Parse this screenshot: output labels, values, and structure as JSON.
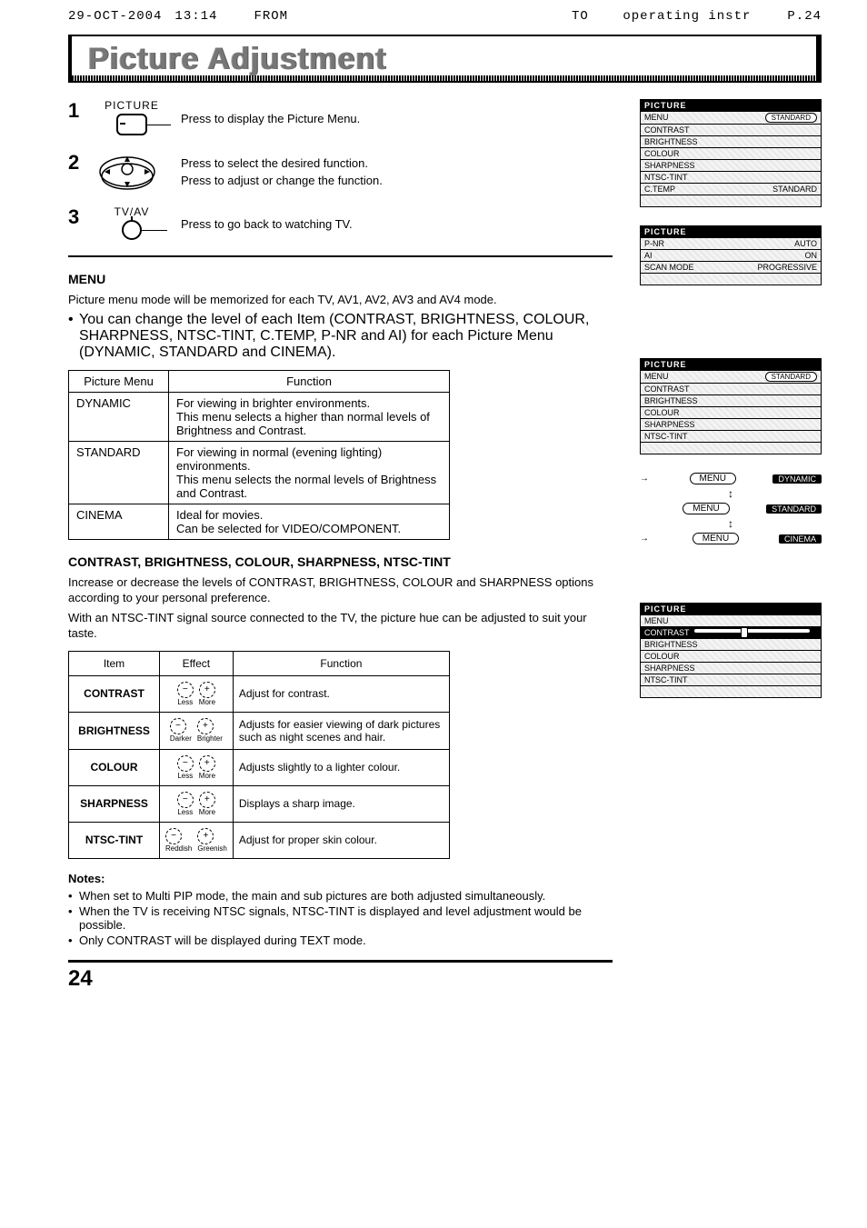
{
  "fax": {
    "date": "29-OCT-2004",
    "time": "13:14",
    "from": "FROM",
    "to_label": "TO",
    "to_value": "operating instr",
    "page": "P.24"
  },
  "title": "Picture Adjustment",
  "steps": [
    {
      "num": "1",
      "icon_label": "PICTURE",
      "lines": [
        "Press to display the Picture Menu."
      ]
    },
    {
      "num": "2",
      "icon_label": "",
      "lines": [
        "Press to select the desired function.",
        "Press to adjust or change the function."
      ]
    },
    {
      "num": "3",
      "icon_label": "TV/AV",
      "lines": [
        "Press to go back to watching TV."
      ]
    }
  ],
  "menu": {
    "heading": "MENU",
    "intro": "Picture menu mode will be memorized for each TV, AV1, AV2, AV3 and AV4 mode.",
    "bullet": "You can change the level of each Item (CONTRAST, BRIGHTNESS, COLOUR, SHARPNESS, NTSC-TINT, C.TEMP, P-NR and AI) for each Picture Menu (DYNAMIC, STANDARD and CINEMA).",
    "table_headers": [
      "Picture Menu",
      "Function"
    ],
    "rows": [
      {
        "name": "DYNAMIC",
        "func": "For viewing in brighter environments.\nThis menu selects a higher than normal levels of Brightness and Contrast."
      },
      {
        "name": "STANDARD",
        "func": "For viewing in normal (evening lighting) environments.\nThis menu selects the normal levels of Brightness and Contrast."
      },
      {
        "name": "CINEMA",
        "func": "Ideal for movies.\nCan be selected for VIDEO/COMPONENT."
      }
    ]
  },
  "adjust": {
    "heading": "CONTRAST, BRIGHTNESS, COLOUR, SHARPNESS, NTSC-TINT",
    "p1": "Increase or decrease the levels of CONTRAST, BRIGHTNESS, COLOUR and SHARPNESS options according to your personal preference.",
    "p2": "With an NTSC-TINT signal source connected to the TV, the picture hue can be adjusted to suit your taste.",
    "headers": [
      "Item",
      "Effect",
      "Function"
    ],
    "rows": [
      {
        "item": "CONTRAST",
        "minus": "Less",
        "plus": "More",
        "func": "Adjust for contrast."
      },
      {
        "item": "BRIGHTNESS",
        "minus": "Darker",
        "plus": "Brighter",
        "func": "Adjusts for easier viewing of dark pictures such as night scenes and hair."
      },
      {
        "item": "COLOUR",
        "minus": "Less",
        "plus": "More",
        "func": "Adjusts slightly to a lighter colour."
      },
      {
        "item": "SHARPNESS",
        "minus": "Less",
        "plus": "More",
        "func": "Displays a sharp image."
      },
      {
        "item": "NTSC-TINT",
        "minus": "Reddish",
        "plus": "Greenish",
        "func": "Adjust for proper skin colour."
      }
    ]
  },
  "notes": {
    "heading": "Notes:",
    "items": [
      "When set to Multi PIP mode, the main and sub pictures are both adjusted simultaneously.",
      "When the TV is receiving NTSC signals, NTSC-TINT is displayed and level adjustment would be possible.",
      "Only CONTRAST will be displayed during TEXT mode."
    ]
  },
  "page_number": "24",
  "osd1": {
    "title": "PICTURE",
    "rows": [
      {
        "k": "MENU",
        "v": "STANDARD",
        "style": "pill"
      },
      {
        "k": "CONTRAST",
        "v": ""
      },
      {
        "k": "BRIGHTNESS",
        "v": ""
      },
      {
        "k": "COLOUR",
        "v": ""
      },
      {
        "k": "SHARPNESS",
        "v": ""
      },
      {
        "k": "NTSC-TINT",
        "v": ""
      },
      {
        "k": "C.TEMP",
        "v": "STANDARD"
      },
      {
        "k": "",
        "v": ""
      }
    ]
  },
  "osd2": {
    "title": "PICTURE",
    "rows": [
      {
        "k": "P-NR",
        "v": "AUTO"
      },
      {
        "k": "AI",
        "v": "ON"
      },
      {
        "k": "SCAN MODE",
        "v": "PROGRESSIVE"
      },
      {
        "k": "",
        "v": ""
      }
    ]
  },
  "osd3": {
    "title": "PICTURE",
    "rows": [
      {
        "k": "MENU",
        "v": "STANDARD",
        "style": "pill"
      },
      {
        "k": "CONTRAST",
        "v": ""
      },
      {
        "k": "BRIGHTNESS",
        "v": ""
      },
      {
        "k": "COLOUR",
        "v": ""
      },
      {
        "k": "SHARPNESS",
        "v": ""
      },
      {
        "k": "NTSC-TINT",
        "v": ""
      },
      {
        "k": "",
        "v": ""
      }
    ]
  },
  "menu_cycle": {
    "btn": "MENU",
    "vals": [
      "DYNAMIC",
      "STANDARD",
      "CINEMA"
    ]
  },
  "osd4": {
    "title": "PICTURE",
    "selected": "CONTRAST",
    "rows": [
      {
        "k": "MENU",
        "v": ""
      },
      {
        "k": "CONTRAST",
        "v": "",
        "slider": true,
        "inv": true
      },
      {
        "k": "BRIGHTNESS",
        "v": ""
      },
      {
        "k": "COLOUR",
        "v": ""
      },
      {
        "k": "SHARPNESS",
        "v": ""
      },
      {
        "k": "NTSC-TINT",
        "v": ""
      },
      {
        "k": "",
        "v": ""
      }
    ]
  },
  "colors": {
    "text": "#000000",
    "title_fill": "#777777",
    "background": "#ffffff"
  }
}
